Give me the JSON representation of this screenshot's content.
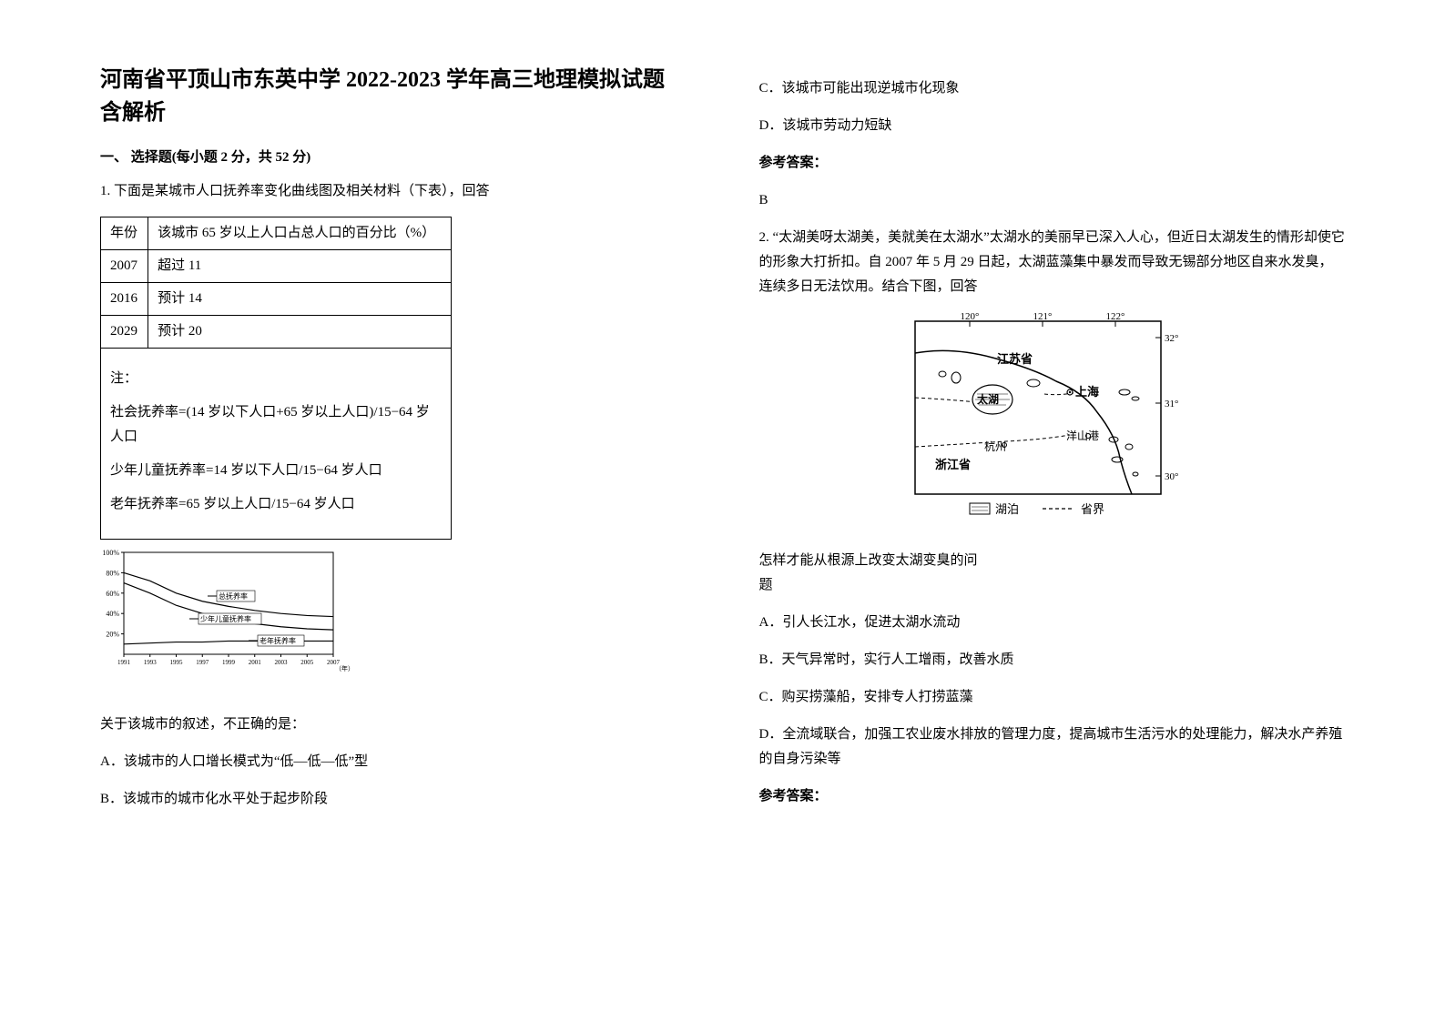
{
  "title": "河南省平顶山市东英中学 2022-2023 学年高三地理模拟试题含解析",
  "section1_heading": "一、 选择题(每小题 2 分，共 52 分)",
  "q1": {
    "intro": "1. 下面是某城市人口抚养率变化曲线图及相关材料（下表），回答",
    "table": {
      "headers": [
        "年份",
        "该城市 65 岁以上人口占总人口的百分比（%）"
      ],
      "rows": [
        [
          "2007",
          "超过 11"
        ],
        [
          "2016",
          "预计 14"
        ],
        [
          "2029",
          "预计 20"
        ]
      ]
    },
    "notes_title": "注：",
    "notes": [
      "社会抚养率=(14 岁以下人口+65 岁以上人口)/15−64 岁人口",
      "少年儿童抚养率=14 岁以下人口/15−64 岁人口",
      "老年抚养率=65 岁以上人口/15−64 岁人口"
    ],
    "chart": {
      "y_ticks": [
        "100%",
        "80%",
        "60%",
        "40%",
        "20%"
      ],
      "x_ticks": [
        "1991",
        "1993",
        "1995",
        "1997",
        "1999",
        "2001",
        "2003",
        "2005",
        "2007"
      ],
      "x_axis_label": "（年）",
      "series": [
        {
          "label": "总抚养率",
          "points": [
            [
              0,
              80
            ],
            [
              1,
              72
            ],
            [
              2,
              60
            ],
            [
              3,
              52
            ],
            [
              4,
              47
            ],
            [
              5,
              43
            ],
            [
              6,
              40
            ],
            [
              7,
              38
            ],
            [
              8,
              37
            ]
          ]
        },
        {
          "label": "少年儿童抚养率",
          "points": [
            [
              0,
              70
            ],
            [
              1,
              60
            ],
            [
              2,
              48
            ],
            [
              3,
              40
            ],
            [
              4,
              34
            ],
            [
              5,
              30
            ],
            [
              6,
              27
            ],
            [
              7,
              25
            ],
            [
              8,
              24
            ]
          ]
        },
        {
          "label": "老年抚养率",
          "points": [
            [
              0,
              10
            ],
            [
              1,
              11
            ],
            [
              2,
              12
            ],
            [
              3,
              12
            ],
            [
              4,
              13
            ],
            [
              5,
              13
            ],
            [
              6,
              13
            ],
            [
              7,
              13
            ],
            [
              8,
              13
            ]
          ]
        }
      ],
      "ylim": [
        0,
        100
      ],
      "grid_color": "#000000",
      "line_color": "#000000",
      "font_size": 8
    },
    "stem": "关于该城市的叙述，不正确的是：",
    "options": [
      "A．该城市的人口增长模式为“低—低—低”型",
      "B．该城市的城市化水平处于起步阶段",
      "C．该城市可能出现逆城市化现象",
      "D．该城市劳动力短缺"
    ],
    "answer_label": "参考答案：",
    "answer_value": "B"
  },
  "q2": {
    "intro": "2. “太湖美呀太湖美，美就美在太湖水”太湖水的美丽早已深入人心，但近日太湖发生的情形却使它的形象大打折扣。自 2007 年 5 月 29 日起，太湖蓝藻集中暴发而导致无锡部分地区自来水发臭，连续多日无法饮用。结合下图，回答",
    "map": {
      "lon_labels": [
        "120°",
        "121°",
        "122°"
      ],
      "lat_labels": [
        "32°",
        "31°",
        "30°"
      ],
      "places": {
        "jiangsu": "江苏省",
        "taihu": "太湖",
        "shanghai": "上海",
        "hangzhou": "杭州",
        "zhejiang": "浙江省",
        "yangshan": "洋山港"
      },
      "legend_lake": "湖泊",
      "legend_border": "省界",
      "line_color": "#000000",
      "background_color": "#ffffff"
    },
    "stem1": "怎样才能从根源上改变太湖变臭的问",
    "stem2": "题",
    "options": [
      "A．引人长江水，促进太湖水流动",
      "B．天气异常时，实行人工增雨，改善水质",
      "C．购买捞藻船，安排专人打捞蓝藻",
      "D．全流域联合，加强工农业废水排放的管理力度，提高城市生活污水的处理能力，解决水产养殖的自身污染等"
    ],
    "answer_label": "参考答案："
  }
}
